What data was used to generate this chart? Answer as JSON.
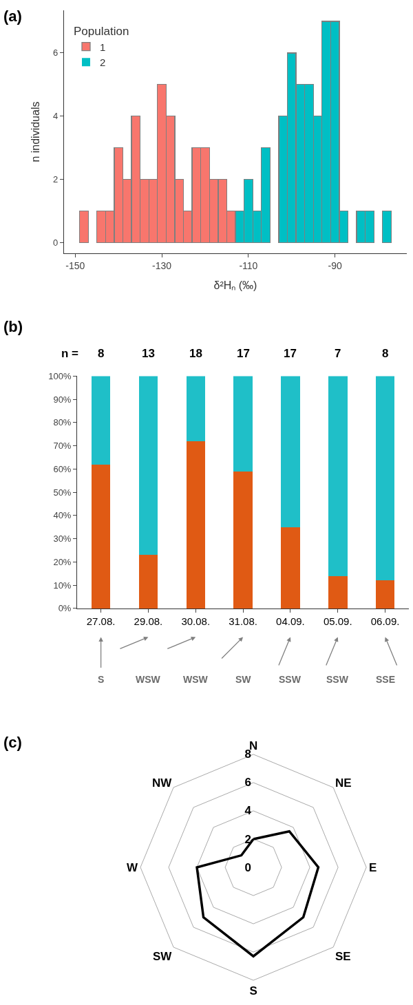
{
  "chart_data": [
    {
      "type": "histogram",
      "title": "(a)",
      "xlabel": "δ²Hₙ (‰)",
      "ylabel": "n individuals",
      "legend_title": "Population",
      "bins": [
        -149,
        -147,
        -145,
        -143,
        -141,
        -139,
        -137,
        -135,
        -133,
        -131,
        -129,
        -127,
        -125,
        -123,
        -121,
        -119,
        -117,
        -115,
        -113,
        -111,
        -109,
        -107,
        -105,
        -103,
        -101,
        -99,
        -97,
        -95,
        -93,
        -91,
        -89,
        -87,
        -85,
        -83,
        -81,
        -79,
        -77
      ],
      "series": [
        {
          "name": "1",
          "color": "#f8766d",
          "values": [
            1,
            0,
            1,
            1,
            3,
            2,
            4,
            2,
            2,
            5,
            4,
            2,
            1,
            3,
            3,
            2,
            2,
            1,
            null,
            null,
            null,
            null,
            null,
            null,
            null,
            null,
            null,
            null,
            null,
            null,
            null,
            null,
            null,
            null,
            null,
            null
          ]
        },
        {
          "name": "2",
          "color": "#00bfc4",
          "values": [
            null,
            null,
            null,
            null,
            null,
            null,
            null,
            null,
            null,
            null,
            null,
            null,
            null,
            null,
            null,
            null,
            null,
            null,
            1,
            2,
            1,
            3,
            0,
            4,
            6,
            5,
            5,
            4,
            7,
            7,
            1,
            0,
            1,
            1,
            0,
            1
          ]
        }
      ],
      "xlim": [
        -152.6,
        -73.4
      ],
      "ylim": [
        -0.35,
        7.35
      ],
      "xticks": [
        -150,
        -130,
        -110,
        -90
      ],
      "yticks": [
        0,
        2,
        4,
        6
      ],
      "legend": "top left"
    },
    {
      "type": "bar",
      "title": "(b)",
      "stacked": true,
      "categories": [
        "27.08.",
        "29.08.",
        "30.08.",
        "31.08.",
        "04.09.",
        "05.09.",
        "06.09."
      ],
      "series": [
        {
          "color": "#e05a14",
          "values": [
            62,
            23,
            72,
            59,
            35,
            14,
            12
          ]
        },
        {
          "color": "#1fbfc8",
          "values": [
            38,
            77,
            28,
            41,
            65,
            86,
            88
          ]
        }
      ],
      "ylim": [
        0,
        100
      ],
      "yticks": [
        {
          "value": 0,
          "label": "0%"
        },
        {
          "value": 10,
          "label": "10%"
        },
        {
          "value": 20,
          "label": "20%"
        },
        {
          "value": 30,
          "label": "30%"
        },
        {
          "value": 40,
          "label": "40%"
        },
        {
          "value": 50,
          "label": "50%"
        },
        {
          "value": 60,
          "label": "60%"
        },
        {
          "value": 70,
          "label": "70%"
        },
        {
          "value": 80,
          "label": "80%"
        },
        {
          "value": 90,
          "label": "90%"
        },
        {
          "value": 100,
          "label": "100%"
        }
      ],
      "annotations": [
        "n =",
        "8",
        "13",
        "18",
        "17",
        "17",
        "7",
        "8",
        "S",
        "WSW",
        "WSW",
        "SW",
        "SSW",
        "SSW",
        "SSE"
      ]
    },
    {
      "type": "radar",
      "title": "(c)",
      "categories": [
        "N",
        "NE",
        "E",
        "SE",
        "S",
        "SW",
        "W",
        "NW"
      ],
      "series": [
        {
          "color": "#000000",
          "values": [
            2,
            3.6,
            4.6,
            5,
            6.3,
            5,
            4,
            1.2
          ]
        }
      ],
      "ylim": [
        0,
        8
      ],
      "yticks": [
        0,
        2,
        4,
        6,
        8
      ],
      "grid": true,
      "marker": "none"
    }
  ]
}
